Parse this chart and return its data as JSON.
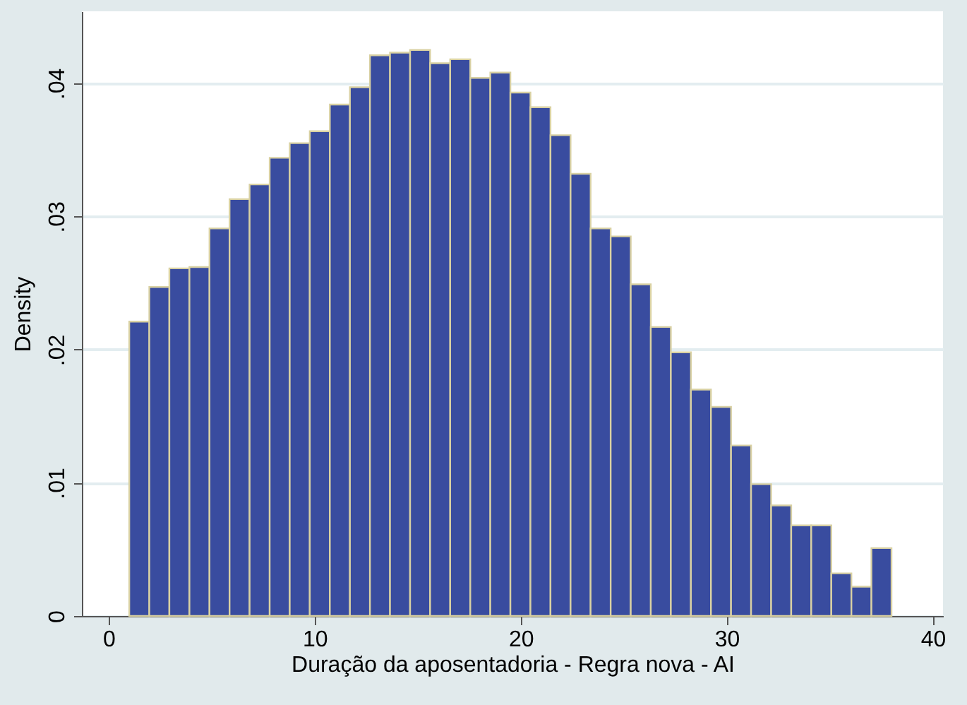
{
  "chart_data": {
    "type": "histogram",
    "xlabel": "Duração da aposentadoria - Regra nova - AI",
    "ylabel": "Density",
    "bins": [
      1,
      1.974,
      2.947,
      3.921,
      4.895,
      5.868,
      6.842,
      7.816,
      8.789,
      9.763,
      10.737,
      11.711,
      12.684,
      13.658,
      14.632,
      15.605,
      16.579,
      17.553,
      18.526,
      19.5,
      20.474,
      21.447,
      22.421,
      23.395,
      24.368,
      25.342,
      26.316,
      27.289,
      28.263,
      29.237,
      30.211,
      31.184,
      32.158,
      33.132,
      34.105,
      35.079,
      36.053,
      37.026,
      38
    ],
    "values": [
      0.0221,
      0.0247,
      0.0261,
      0.0262,
      0.0291,
      0.0313,
      0.0324,
      0.0344,
      0.0355,
      0.0364,
      0.0384,
      0.0397,
      0.0421,
      0.0423,
      0.0425,
      0.0415,
      0.0418,
      0.0404,
      0.0408,
      0.0393,
      0.0382,
      0.0361,
      0.0332,
      0.0291,
      0.0285,
      0.0249,
      0.0217,
      0.0198,
      0.017,
      0.0157,
      0.0128,
      0.0099,
      0.0083,
      0.0068,
      0.0068,
      0.0032,
      0.0022,
      0.0051
    ],
    "color": "#394c9f",
    "xlim": [
      -1.3,
      40.5
    ],
    "xticks": [
      0,
      10,
      20,
      30,
      40
    ],
    "ylim": [
      0,
      0.0454
    ],
    "yticks": [
      0,
      {
        "value": 0.01,
        "label": ".01"
      },
      {
        "value": 0.02,
        "label": ".02"
      },
      {
        "value": 0.03,
        "label": ".03"
      },
      {
        "value": 0.04,
        "label": ".04"
      }
    ],
    "grid": "y"
  }
}
